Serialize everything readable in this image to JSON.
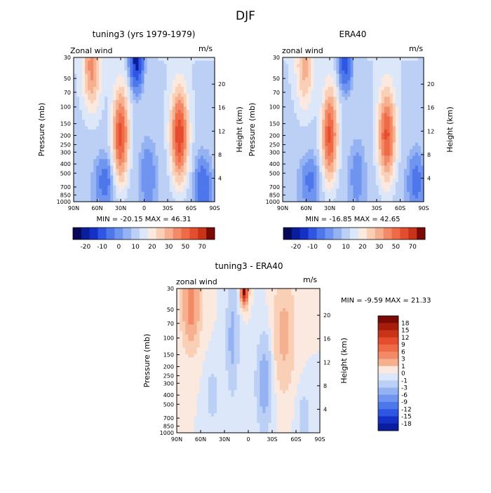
{
  "figure": {
    "title": "DJF"
  },
  "colors": {
    "neg": [
      "#06095a",
      "#0a1d9c",
      "#1530c6",
      "#2f55e3",
      "#4f77ec",
      "#6f95f0",
      "#95b3f3",
      "#bcd0f6",
      "#dce8fa"
    ],
    "pos": [
      "#fbe9df",
      "#f9cfb6",
      "#f7b08f",
      "#f38a67",
      "#ef6b47",
      "#e44e2e",
      "#c93418",
      "#a71d0c",
      "#7a0a05"
    ]
  },
  "chart_data": [
    {
      "type": "heatmap",
      "id": "model",
      "title": "tuning3 (yrs 1979-1979)",
      "variable_label": "Zonal wind",
      "units": "m/s",
      "ylabel": "Pressure (mb)",
      "y2label": "Height (km)",
      "x_ticks": [
        "90N",
        "60N",
        "30N",
        "0",
        "30S",
        "60S",
        "90S"
      ],
      "y_ticks": [
        "30",
        "50",
        "70",
        "100",
        "150",
        "200",
        "250",
        "300",
        "400",
        "500",
        "700",
        "850",
        "1000"
      ],
      "y2_ticks": [
        "4",
        "8",
        "12",
        "16",
        "20"
      ],
      "stats": "MIN = -20.15  MAX =  46.31",
      "colorbar_labels": [
        "-20",
        "-10",
        "0",
        "10",
        "20",
        "30",
        "50",
        "70"
      ],
      "features": [
        {
          "lat": 67,
          "p": 38,
          "value": 25,
          "wx": 10,
          "wl": 0.9
        },
        {
          "lat": 30,
          "p": 200,
          "value": 42,
          "wx": 9,
          "wl": 1.0
        },
        {
          "lat": -45,
          "p": 200,
          "value": 45,
          "wx": 10,
          "wl": 1.0
        },
        {
          "lat": 10,
          "p": 32,
          "value": -20,
          "wx": 9,
          "wl": 0.7
        },
        {
          "lat": 50,
          "p": 600,
          "value": -8,
          "wx": 12,
          "wl": 0.6
        },
        {
          "lat": -5,
          "p": 500,
          "value": -6,
          "wx": 10,
          "wl": 0.8
        },
        {
          "lat": -75,
          "p": 700,
          "value": -10,
          "wx": 10,
          "wl": 0.7
        }
      ]
    },
    {
      "type": "heatmap",
      "id": "obs",
      "title": "ERA40",
      "variable_label": "zonal wind",
      "units": "m/s",
      "ylabel": "Pressure (mb)",
      "y2label": "Height (km)",
      "x_ticks": [
        "90N",
        "60N",
        "30N",
        "0",
        "30S",
        "60S",
        "90S"
      ],
      "y_ticks": [
        "30",
        "50",
        "70",
        "100",
        "150",
        "200",
        "250",
        "300",
        "400",
        "500",
        "700",
        "850",
        "1000"
      ],
      "y2_ticks": [
        "4",
        "8",
        "12",
        "16",
        "20"
      ],
      "stats": "MIN = -16.85  MAX =  42.65",
      "colorbar_labels": [
        "-20",
        "-10",
        "0",
        "10",
        "20",
        "30",
        "50",
        "70"
      ],
      "features": [
        {
          "lat": 62,
          "p": 38,
          "value": 18,
          "wx": 10,
          "wl": 0.9
        },
        {
          "lat": 30,
          "p": 200,
          "value": 40,
          "wx": 9,
          "wl": 1.0
        },
        {
          "lat": -43,
          "p": 200,
          "value": 40,
          "wx": 10,
          "wl": 1.0
        },
        {
          "lat": 10,
          "p": 32,
          "value": -16,
          "wx": 9,
          "wl": 0.7
        },
        {
          "lat": 55,
          "p": 600,
          "value": -7,
          "wx": 12,
          "wl": 0.6
        },
        {
          "lat": -5,
          "p": 500,
          "value": -5,
          "wx": 10,
          "wl": 0.8
        },
        {
          "lat": -80,
          "p": 600,
          "value": -8,
          "wx": 10,
          "wl": 0.7
        }
      ]
    },
    {
      "type": "heatmap",
      "id": "diff",
      "title": "tuning3 - ERA40",
      "variable_label": "zonal wind",
      "units": "m/s",
      "ylabel": "Pressure (mb)",
      "y2label": "Height (km)",
      "x_ticks": [
        "90N",
        "60N",
        "30N",
        "0",
        "30S",
        "60S",
        "90S"
      ],
      "y_ticks": [
        "30",
        "50",
        "70",
        "100",
        "150",
        "200",
        "250",
        "300",
        "400",
        "500",
        "700",
        "850",
        "1000"
      ],
      "y2_ticks": [
        "4",
        "8",
        "12",
        "16",
        "20"
      ],
      "stats": "MIN =  -9.59  MAX =  21.33",
      "colorbar_labels": [
        "18",
        "15",
        "12",
        "9",
        "6",
        "3",
        "1",
        "0",
        "-1",
        "-3",
        "-6",
        "-9",
        "-12",
        "-15",
        "-18"
      ],
      "features": [
        {
          "lat": 72,
          "p": 45,
          "value": 8,
          "wx": 10,
          "wl": 0.9
        },
        {
          "lat": 5,
          "p": 32,
          "value": 21,
          "wx": 4,
          "wl": 0.3
        },
        {
          "lat": -45,
          "p": 90,
          "value": 4,
          "wx": 12,
          "wl": 1.2
        },
        {
          "lat": 20,
          "p": 100,
          "value": -4,
          "wx": 7,
          "wl": 1.2
        },
        {
          "lat": -20,
          "p": 300,
          "value": -5,
          "wx": 9,
          "wl": 1.0
        },
        {
          "lat": 45,
          "p": 400,
          "value": -2,
          "wx": 8,
          "wl": 0.6
        },
        {
          "lat": -70,
          "p": 700,
          "value": -2,
          "wx": 8,
          "wl": 0.6
        }
      ]
    }
  ]
}
